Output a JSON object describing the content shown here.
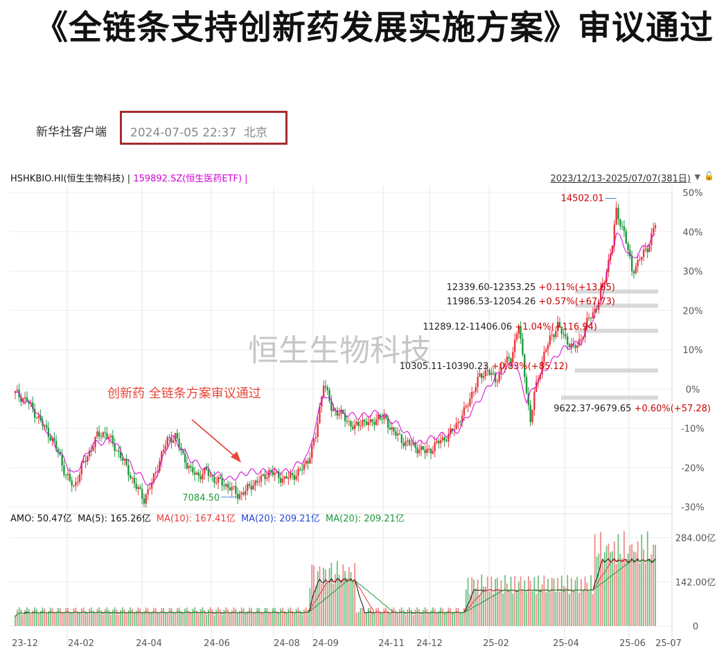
{
  "headline": "《全链条支持创新药发展实施方案》审议通过",
  "byline": {
    "source": "新华社客户端",
    "datetime": "2024-07-05 22:37",
    "location": "北京"
  },
  "chart_header": {
    "index_label": "HSHKBIO.HI(恒生生物科技)",
    "separator": " | ",
    "etf_label": "159892.SZ(恒生医药ETF)",
    "trailing": " |",
    "range": "2023/12/13-2025/07/07(381日)"
  },
  "watermark": "恒生生物科技",
  "annotation": "创新药 全链条方案审议通过",
  "amo_legend": {
    "amo": "AMO: 50.47亿",
    "ma5": "MA(5): 165.26亿",
    "ma10": "MA(10): 167.41亿",
    "ma20a": "MA(20): 209.21亿",
    "ma20b": "MA(20): 209.21亿"
  },
  "colors": {
    "up": "#e8383d",
    "down": "#1a9a3a",
    "etf": "#d400d4",
    "annotation": "#e8483a"
  },
  "chart_data": {
    "type": "line",
    "price_chart": {
      "y_axis_ticks": [
        "50%",
        "40%",
        "30%",
        "20%",
        "10%",
        "0%",
        "-10%",
        "-20%",
        "-30%"
      ],
      "ylim_pct": [
        -30,
        50
      ],
      "high_label": "14502.01",
      "low_label": "7084.50",
      "gap_labels": [
        {
          "range": "12339.60-12353.25",
          "change": "+0.11%(+13.65)",
          "level_pct": 24.8
        },
        {
          "range": "11986.53-12054.26",
          "change": "+0.57%(+67.73)",
          "level_pct": 21.2
        },
        {
          "range": "11289.12-11406.06",
          "change": "+1.04%(+116.94)",
          "level_pct": 14.8
        },
        {
          "range": "10305.11-10390.23",
          "change": "+0.83%(+85.12)",
          "level_pct": 4.7
        },
        {
          "range": "9622.37-9679.65",
          "change": "+0.60%(+57.28)",
          "level_pct": -2.2
        }
      ],
      "x_ticks": [
        "23-12",
        "24-02",
        "24-04",
        "24-06",
        "24-08",
        "24-09",
        "24-11",
        "24-12",
        "25-02",
        "25-04",
        "25-06",
        "25-07"
      ],
      "series": [
        {
          "name": "HSHKBIO.HI",
          "points": [
            [
              0,
              -1
            ],
            [
              6,
              -3
            ],
            [
              10,
              -6
            ],
            [
              14,
              -9
            ],
            [
              18,
              -12
            ],
            [
              22,
              -16
            ],
            [
              26,
              -22
            ],
            [
              30,
              -25
            ],
            [
              34,
              -20
            ],
            [
              38,
              -16
            ],
            [
              42,
              -12
            ],
            [
              46,
              -11
            ],
            [
              50,
              -14
            ],
            [
              54,
              -17
            ],
            [
              58,
              -21
            ],
            [
              62,
              -25
            ],
            [
              66,
              -28
            ],
            [
              70,
              -24
            ],
            [
              74,
              -18
            ],
            [
              78,
              -13
            ],
            [
              82,
              -12
            ],
            [
              86,
              -17
            ],
            [
              90,
              -21
            ],
            [
              94,
              -22
            ],
            [
              98,
              -21
            ],
            [
              102,
              -23
            ],
            [
              106,
              -24
            ],
            [
              110,
              -25
            ],
            [
              114,
              -27
            ],
            [
              118,
              -26
            ],
            [
              122,
              -24
            ],
            [
              126,
              -23
            ],
            [
              130,
              -21
            ],
            [
              134,
              -22
            ],
            [
              138,
              -23
            ],
            [
              142,
              -22
            ],
            [
              146,
              -21
            ],
            [
              150,
              -18
            ],
            [
              154,
              -12
            ],
            [
              158,
              2
            ],
            [
              162,
              -5
            ],
            [
              166,
              -6
            ],
            [
              170,
              -8
            ],
            [
              174,
              -10
            ],
            [
              178,
              -8
            ],
            [
              182,
              -9
            ],
            [
              186,
              -7
            ],
            [
              190,
              -8
            ],
            [
              194,
              -11
            ],
            [
              198,
              -13
            ],
            [
              202,
              -14
            ],
            [
              206,
              -15
            ],
            [
              210,
              -16
            ],
            [
              214,
              -15
            ],
            [
              218,
              -13
            ],
            [
              222,
              -12
            ],
            [
              226,
              -9
            ],
            [
              230,
              -6
            ],
            [
              234,
              -1
            ],
            [
              238,
              3
            ],
            [
              242,
              5
            ],
            [
              246,
              2
            ],
            [
              250,
              6
            ],
            [
              254,
              8
            ],
            [
              258,
              16
            ],
            [
              262,
              0
            ],
            [
              264,
              -9
            ],
            [
              266,
              -1
            ],
            [
              270,
              7
            ],
            [
              274,
              13
            ],
            [
              278,
              16
            ],
            [
              282,
              13
            ],
            [
              286,
              10
            ],
            [
              290,
              13
            ],
            [
              294,
              18
            ],
            [
              298,
              21
            ],
            [
              302,
              28
            ],
            [
              306,
              37
            ],
            [
              308,
              45
            ],
            [
              312,
              40
            ],
            [
              316,
              30
            ],
            [
              320,
              33
            ],
            [
              324,
              36
            ],
            [
              328,
              42
            ]
          ]
        },
        {
          "name": "159892.SZ",
          "points": [
            [
              0,
              -1
            ],
            [
              10,
              -5
            ],
            [
              20,
              -14
            ],
            [
              30,
              -22
            ],
            [
              40,
              -14
            ],
            [
              50,
              -13
            ],
            [
              60,
              -20
            ],
            [
              70,
              -25
            ],
            [
              80,
              -12
            ],
            [
              90,
              -18
            ],
            [
              100,
              -21
            ],
            [
              110,
              -23
            ],
            [
              120,
              -21
            ],
            [
              130,
              -21
            ],
            [
              140,
              -21
            ],
            [
              150,
              -17
            ],
            [
              158,
              -1
            ],
            [
              166,
              -6
            ],
            [
              176,
              -7
            ],
            [
              186,
              -6
            ],
            [
              196,
              -9
            ],
            [
              206,
              -14
            ],
            [
              216,
              -12
            ],
            [
              226,
              -11
            ],
            [
              236,
              -4
            ],
            [
              246,
              3
            ],
            [
              256,
              7
            ],
            [
              262,
              -3
            ],
            [
              270,
              4
            ],
            [
              280,
              10
            ],
            [
              290,
              12
            ],
            [
              300,
              22
            ],
            [
              308,
              40
            ],
            [
              316,
              33
            ],
            [
              324,
              37
            ],
            [
              328,
              39
            ]
          ]
        }
      ]
    },
    "volume_chart": {
      "y_axis_ticks": [
        "284.00亿",
        "142.00亿",
        "0"
      ],
      "ylim": [
        0,
        330
      ],
      "unit": "亿",
      "ma_last_values": {
        "AMO": 50.47,
        "MA5": 165.26,
        "MA10": 167.41,
        "MA20": 209.21
      }
    }
  }
}
